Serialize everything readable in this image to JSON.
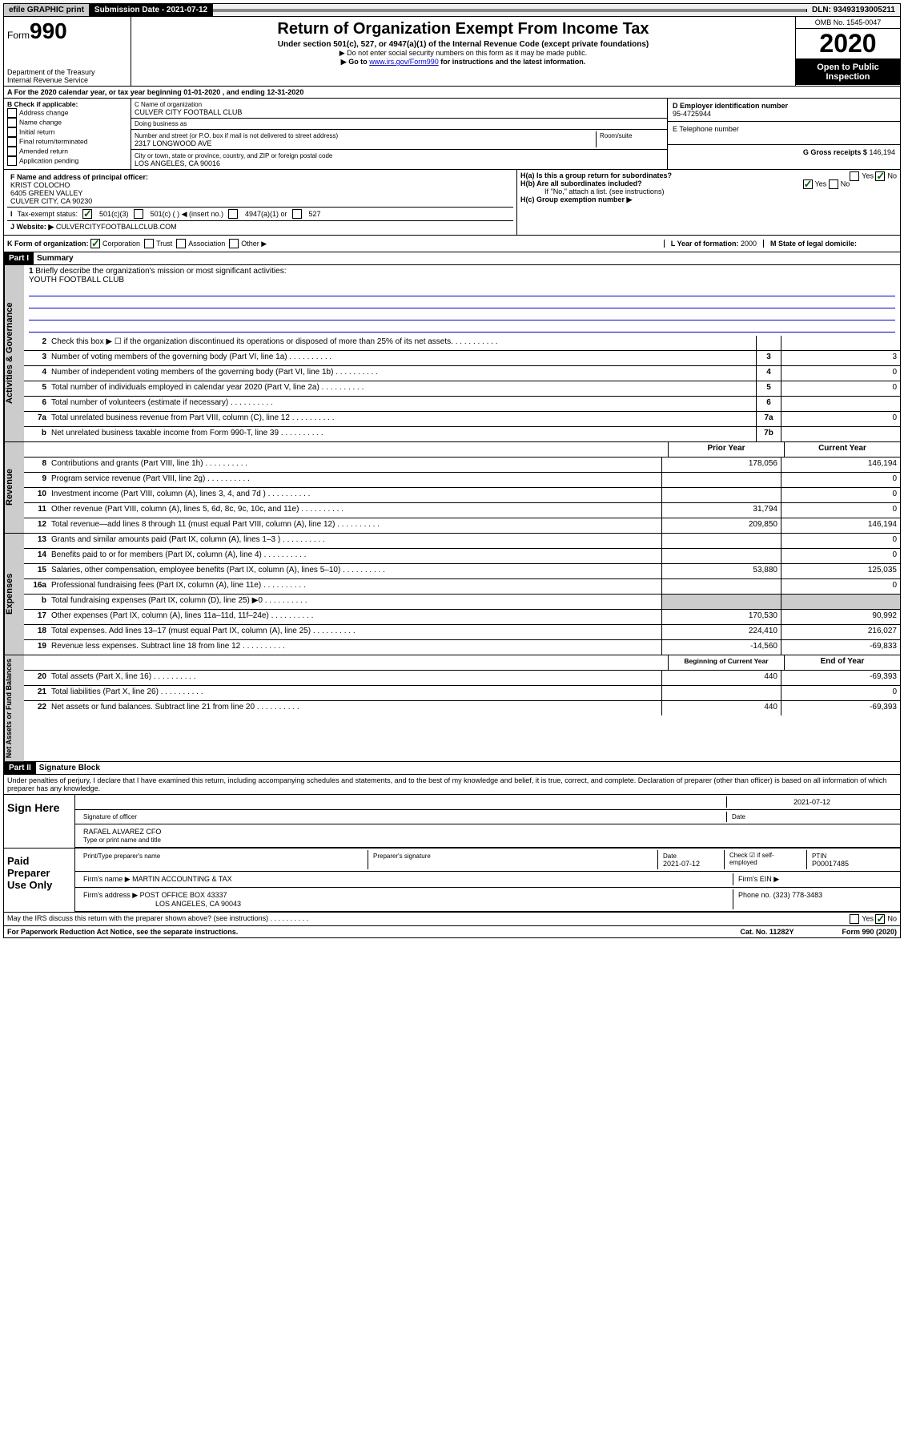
{
  "topbar": {
    "efile": "efile GRAPHIC print",
    "subdate_label": "Submission Date - ",
    "subdate": "2021-07-12",
    "dln": "DLN: 93493193005211"
  },
  "header": {
    "form_prefix": "Form",
    "form_num": "990",
    "dept": "Department of the Treasury\nInternal Revenue Service",
    "title": "Return of Organization Exempt From Income Tax",
    "sub": "Under section 501(c), 527, or 4947(a)(1) of the Internal Revenue Code (except private foundations)",
    "note1": "▶ Do not enter social security numbers on this form as it may be made public.",
    "note2_pre": "▶ Go to ",
    "note2_link": "www.irs.gov/Form990",
    "note2_post": " for instructions and the latest information.",
    "omb": "OMB No. 1545-0047",
    "year": "2020",
    "open": "Open to Public Inspection"
  },
  "lineA": "A For the 2020 calendar year, or tax year beginning 01-01-2020     , and ending 12-31-2020",
  "boxB": {
    "title": "B Check if applicable:",
    "items": [
      "Address change",
      "Name change",
      "Initial return",
      "Final return/terminated",
      "Amended return",
      "Application pending"
    ]
  },
  "boxC": {
    "name_label": "C Name of organization",
    "name": "CULVER CITY FOOTBALL CLUB",
    "dba": "Doing business as",
    "addr_label": "Number and street (or P.O. box if mail is not delivered to street address)",
    "room": "Room/suite",
    "addr": "2317 LONGWOOD AVE",
    "city_label": "City or town, state or province, country, and ZIP or foreign postal code",
    "city": "LOS ANGELES, CA  90016"
  },
  "boxD": {
    "label": "D Employer identification number",
    "val": "95-4725944"
  },
  "boxE": {
    "label": "E Telephone number",
    "val": ""
  },
  "boxG": {
    "label": "G Gross receipts $",
    "val": "146,194"
  },
  "boxF": {
    "label": "F  Name and address of principal officer:",
    "name": "KRIST COLOCHO",
    "addr1": "6405 GREEN VALLEY",
    "addr2": "CULVER CITY, CA  90230"
  },
  "boxH": {
    "a": "H(a)  Is this a group return for subordinates?",
    "b": "H(b)  Are all subordinates included?",
    "b_note": "If \"No,\" attach a list. (see instructions)",
    "c": "H(c)  Group exemption number ▶"
  },
  "boxI": "Tax-exempt status:",
  "boxI_opts": [
    "501(c)(3)",
    "501(c) (  ) ◀ (insert no.)",
    "4947(a)(1) or",
    "527"
  ],
  "boxJ": {
    "label": "Website: ▶",
    "val": "CULVERCITYFOOTBALLCLUB.COM"
  },
  "boxK": "K Form of organization:",
  "boxK_opts": [
    "Corporation",
    "Trust",
    "Association",
    "Other ▶"
  ],
  "boxL": {
    "label": "L Year of formation:",
    "val": "2000"
  },
  "boxM": "M State of legal domicile:",
  "part1": {
    "header": "Part I",
    "title": "Summary"
  },
  "briefly": {
    "num": "1",
    "label": "Briefly describe the organization's mission or most significant activities:",
    "val": "YOUTH FOOTBALL CLUB"
  },
  "gov_lines": [
    {
      "n": "2",
      "d": "Check this box ▶ ☐  if the organization discontinued its operations or disposed of more than 25% of its net assets.",
      "nc": "",
      "v": ""
    },
    {
      "n": "3",
      "d": "Number of voting members of the governing body (Part VI, line 1a)",
      "nc": "3",
      "v": "3"
    },
    {
      "n": "4",
      "d": "Number of independent voting members of the governing body (Part VI, line 1b)",
      "nc": "4",
      "v": "0"
    },
    {
      "n": "5",
      "d": "Total number of individuals employed in calendar year 2020 (Part V, line 2a)",
      "nc": "5",
      "v": "0"
    },
    {
      "n": "6",
      "d": "Total number of volunteers (estimate if necessary)",
      "nc": "6",
      "v": ""
    },
    {
      "n": "7a",
      "d": "Total unrelated business revenue from Part VIII, column (C), line 12",
      "nc": "7a",
      "v": "0"
    },
    {
      "n": "b",
      "d": "Net unrelated business taxable income from Form 990-T, line 39",
      "nc": "7b",
      "v": ""
    }
  ],
  "rev_head": {
    "py": "Prior Year",
    "cy": "Current Year"
  },
  "rev_lines": [
    {
      "n": "8",
      "d": "Contributions and grants (Part VIII, line 1h)",
      "py": "178,056",
      "cy": "146,194"
    },
    {
      "n": "9",
      "d": "Program service revenue (Part VIII, line 2g)",
      "py": "",
      "cy": "0"
    },
    {
      "n": "10",
      "d": "Investment income (Part VIII, column (A), lines 3, 4, and 7d )",
      "py": "",
      "cy": "0"
    },
    {
      "n": "11",
      "d": "Other revenue (Part VIII, column (A), lines 5, 6d, 8c, 9c, 10c, and 11e)",
      "py": "31,794",
      "cy": "0"
    },
    {
      "n": "12",
      "d": "Total revenue—add lines 8 through 11 (must equal Part VIII, column (A), line 12)",
      "py": "209,850",
      "cy": "146,194"
    }
  ],
  "exp_lines": [
    {
      "n": "13",
      "d": "Grants and similar amounts paid (Part IX, column (A), lines 1–3 )",
      "py": "",
      "cy": "0"
    },
    {
      "n": "14",
      "d": "Benefits paid to or for members (Part IX, column (A), line 4)",
      "py": "",
      "cy": "0"
    },
    {
      "n": "15",
      "d": "Salaries, other compensation, employee benefits (Part IX, column (A), lines 5–10)",
      "py": "53,880",
      "cy": "125,035"
    },
    {
      "n": "16a",
      "d": "Professional fundraising fees (Part IX, column (A), line 11e)",
      "py": "",
      "cy": "0"
    },
    {
      "n": "b",
      "d": "Total fundraising expenses (Part IX, column (D), line 25) ▶0",
      "py": "grey",
      "cy": "grey"
    },
    {
      "n": "17",
      "d": "Other expenses (Part IX, column (A), lines 11a–11d, 11f–24e)",
      "py": "170,530",
      "cy": "90,992"
    },
    {
      "n": "18",
      "d": "Total expenses. Add lines 13–17 (must equal Part IX, column (A), line 25)",
      "py": "224,410",
      "cy": "216,027"
    },
    {
      "n": "19",
      "d": "Revenue less expenses. Subtract line 18 from line 12",
      "py": "-14,560",
      "cy": "-69,833"
    }
  ],
  "net_head": {
    "py": "Beginning of Current Year",
    "cy": "End of Year"
  },
  "net_lines": [
    {
      "n": "20",
      "d": "Total assets (Part X, line 16)",
      "py": "440",
      "cy": "-69,393"
    },
    {
      "n": "21",
      "d": "Total liabilities (Part X, line 26)",
      "py": "",
      "cy": "0"
    },
    {
      "n": "22",
      "d": "Net assets or fund balances. Subtract line 21 from line 20",
      "py": "440",
      "cy": "-69,393"
    }
  ],
  "part2": {
    "header": "Part II",
    "title": "Signature Block"
  },
  "declaration": "Under penalties of perjury, I declare that I have examined this return, including accompanying schedules and statements, and to the best of my knowledge and belief, it is true, correct, and complete. Declaration of preparer (other than officer) is based on all information of which preparer has any knowledge.",
  "sign": {
    "left": "Sign Here",
    "date": "2021-07-12",
    "sig_label": "Signature of officer",
    "date_label": "Date",
    "name": "RAFAEL ALVAREZ  CFO",
    "name_label": "Type or print name and title"
  },
  "paid": {
    "left": "Paid Preparer Use Only",
    "h1": "Print/Type preparer's name",
    "h2": "Preparer's signature",
    "h3": "Date",
    "h3v": "2021-07-12",
    "h4": "Check ☑ if self-employed",
    "h5": "PTIN",
    "h5v": "P00017485",
    "firm_label": "Firm's name    ▶",
    "firm": "MARTIN ACCOUNTING & TAX",
    "ein_label": "Firm's EIN ▶",
    "addr_label": "Firm's address ▶",
    "addr1": "POST OFFICE BOX 43337",
    "addr2": "LOS ANGELES, CA  90043",
    "phone_label": "Phone no.",
    "phone": "(323) 778-3483"
  },
  "discuss": "May the IRS discuss this return with the preparer shown above? (see instructions)",
  "footer": {
    "left": "For Paperwork Reduction Act Notice, see the separate instructions.",
    "mid": "Cat. No. 11282Y",
    "right": "Form 990 (2020)"
  }
}
